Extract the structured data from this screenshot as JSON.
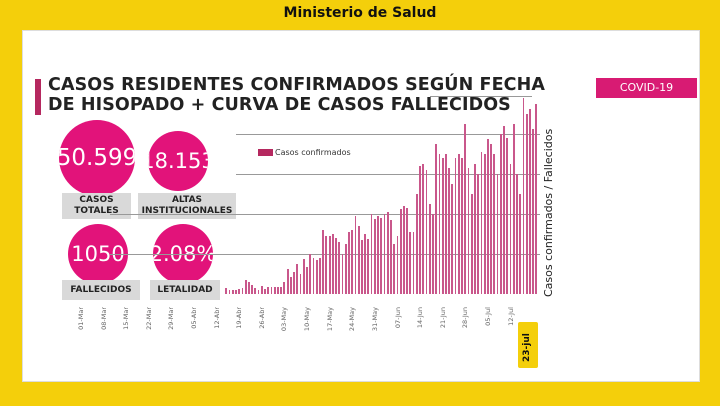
{
  "header": {
    "ministry": "Ministerio de Salud"
  },
  "slide": {
    "title_line1": "CASOS RESIDENTES CONFIRMADOS SEGÚN FECHA",
    "title_line2": "DE HISOPADO + CURVA DE CASOS FALLECIDOS",
    "badge": "COVID-19",
    "accent_color": "#e2137a"
  },
  "stats": [
    {
      "value": "50.599",
      "label_line1": "CASOS",
      "label_line2": "TOTALES"
    },
    {
      "value": "18.153",
      "label_line1": "ALTAS",
      "label_line2": "INSTITUCIONALES"
    },
    {
      "value": "1050",
      "label_line1": "FALLECIDOS",
      "label_line2": ""
    },
    {
      "value": "2.08%",
      "label_line1": "LETALIDAD",
      "label_line2": ""
    }
  ],
  "chart_data": {
    "type": "bar",
    "title": "CASOS RESIDENTES CONFIRMADOS SEGÚN FECHA DE HISOPADO + CURVA DE CASOS FALLECIDOS",
    "ylabel": "Casos confirmados / Fallecidos",
    "legend": {
      "entries": [
        "Casos confirmados"
      ],
      "placement": "top-left of plot"
    },
    "grid": true,
    "ylim": [
      0,
      1000
    ],
    "bar_color": "#c9578b",
    "x_tick_labels": [
      "01-Mar",
      "08-Mar",
      "15-Mar",
      "22-Mar",
      "29-Mar",
      "05-Abr",
      "12-Abr",
      "19-Abr",
      "26-Abr",
      "03-May",
      "10-May",
      "17-May",
      "24-May",
      "31-May",
      "07-Jun",
      "14-Jun",
      "21-Jun",
      "28-Jun",
      "05-Jul",
      "12-Jul"
    ],
    "highlight_date": "23-jul",
    "series": [
      {
        "name": "Casos confirmados",
        "x": [
          "15-Abr",
          "16-Abr",
          "17-Abr",
          "18-Abr",
          "19-Abr",
          "20-Abr",
          "21-Abr",
          "22-Abr",
          "23-Abr",
          "24-Abr",
          "25-Abr",
          "26-Abr",
          "27-Abr",
          "28-Abr",
          "29-Abr",
          "30-Abr",
          "01-May",
          "02-May",
          "03-May",
          "04-May",
          "05-May",
          "06-May",
          "07-May",
          "08-May",
          "09-May",
          "10-May",
          "11-May",
          "12-May",
          "13-May",
          "14-May",
          "15-May",
          "16-May",
          "17-May",
          "18-May",
          "19-May",
          "20-May",
          "21-May",
          "22-May",
          "23-May",
          "24-May",
          "25-May",
          "26-May",
          "27-May",
          "28-May",
          "29-May",
          "30-May",
          "31-May",
          "01-Jun",
          "02-Jun",
          "03-Jun",
          "04-Jun",
          "05-Jun",
          "06-Jun",
          "07-Jun",
          "08-Jun",
          "09-Jun",
          "10-Jun",
          "11-Jun",
          "12-Jun",
          "13-Jun",
          "14-Jun",
          "15-Jun",
          "16-Jun",
          "17-Jun",
          "18-Jun",
          "19-Jun",
          "20-Jun",
          "21-Jun",
          "22-Jun",
          "23-Jun",
          "24-Jun",
          "25-Jun",
          "26-Jun",
          "27-Jun",
          "28-Jun",
          "29-Jun",
          "30-Jun",
          "01-Jul",
          "02-Jul",
          "03-Jul",
          "04-Jul",
          "05-Jul",
          "06-Jul",
          "07-Jul",
          "08-Jul",
          "09-Jul",
          "10-Jul",
          "11-Jul",
          "12-Jul",
          "13-Jul",
          "14-Jul",
          "15-Jul",
          "16-Jul",
          "17-Jul",
          "18-Jul",
          "19-Jul",
          "20-Jul"
        ],
        "values": [
          30,
          20,
          20,
          20,
          25,
          30,
          70,
          60,
          45,
          30,
          20,
          40,
          25,
          35,
          35,
          35,
          35,
          35,
          60,
          125,
          85,
          110,
          150,
          100,
          175,
          135,
          200,
          180,
          170,
          180,
          320,
          290,
          290,
          300,
          280,
          260,
          200,
          250,
          310,
          320,
          390,
          340,
          270,
          300,
          275,
          400,
          375,
          390,
          380,
          400,
          410,
          370,
          250,
          290,
          425,
          440,
          430,
          310,
          310,
          500,
          640,
          650,
          620,
          450,
          400,
          750,
          700,
          680,
          700,
          630,
          550,
          680,
          700,
          680,
          850,
          630,
          500,
          650,
          600,
          710,
          700,
          775,
          750,
          700,
          600,
          800,
          840,
          780,
          650,
          850,
          600,
          500,
          980,
          900,
          925,
          825,
          950
        ]
      }
    ]
  }
}
